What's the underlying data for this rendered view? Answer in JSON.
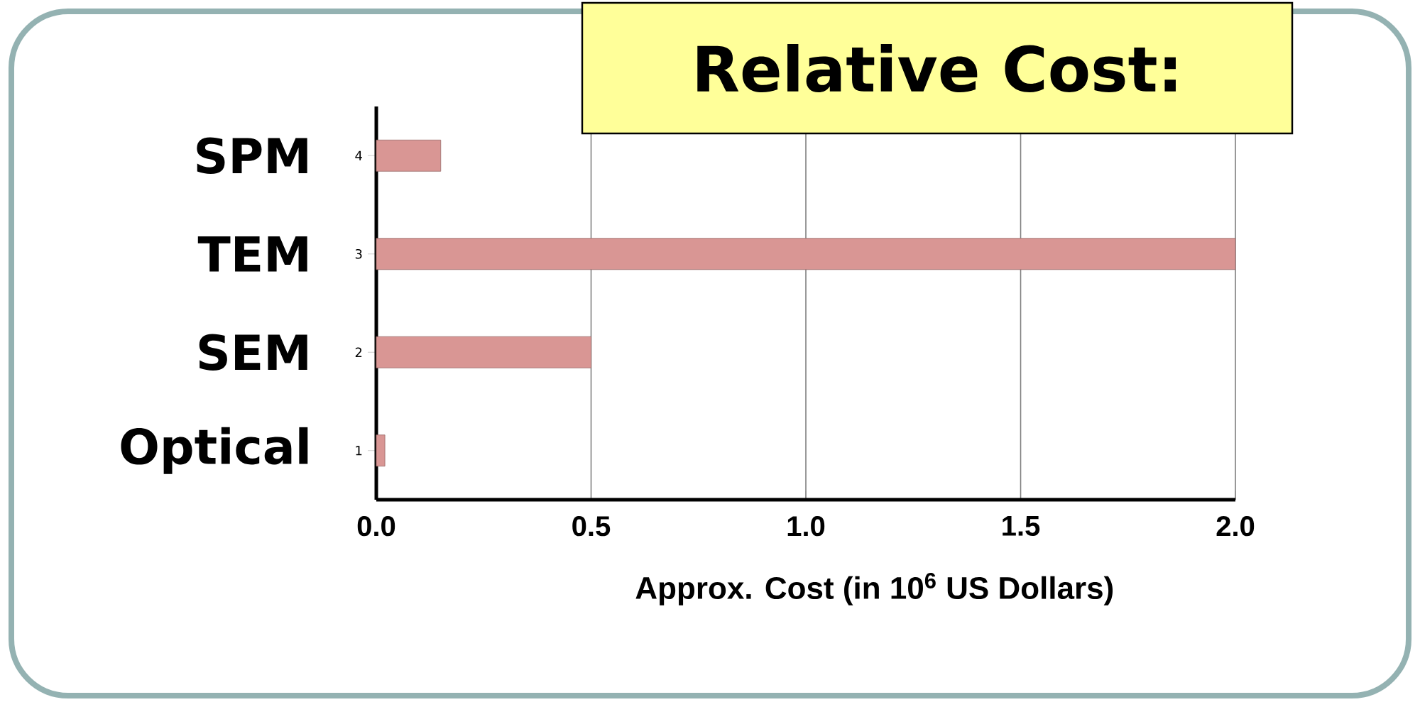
{
  "chart_data": {
    "type": "bar",
    "orientation": "horizontal",
    "title": "Relative Cost:",
    "xlabel": "Approx. Cost (in 10$^{6}$ US Dollars)",
    "categories": [
      "SPM",
      "TEM",
      "SEM",
      "Optical"
    ],
    "values": [
      0.15,
      2.0,
      0.5,
      0.02
    ],
    "color": "#d99694",
    "xlim": [
      0,
      2.0
    ],
    "xticks": [
      {
        "value": 0,
        "label": "0.0"
      },
      {
        "value": 0.5,
        "label": "0.5"
      },
      {
        "value": 1.0,
        "label": "1.0"
      },
      {
        "value": 1.5,
        "label": "1.5"
      },
      {
        "value": 2.0,
        "label": "2.0"
      }
    ],
    "annotations": [
      "4",
      "3",
      "2",
      "1"
    ],
    "grid": "x"
  }
}
